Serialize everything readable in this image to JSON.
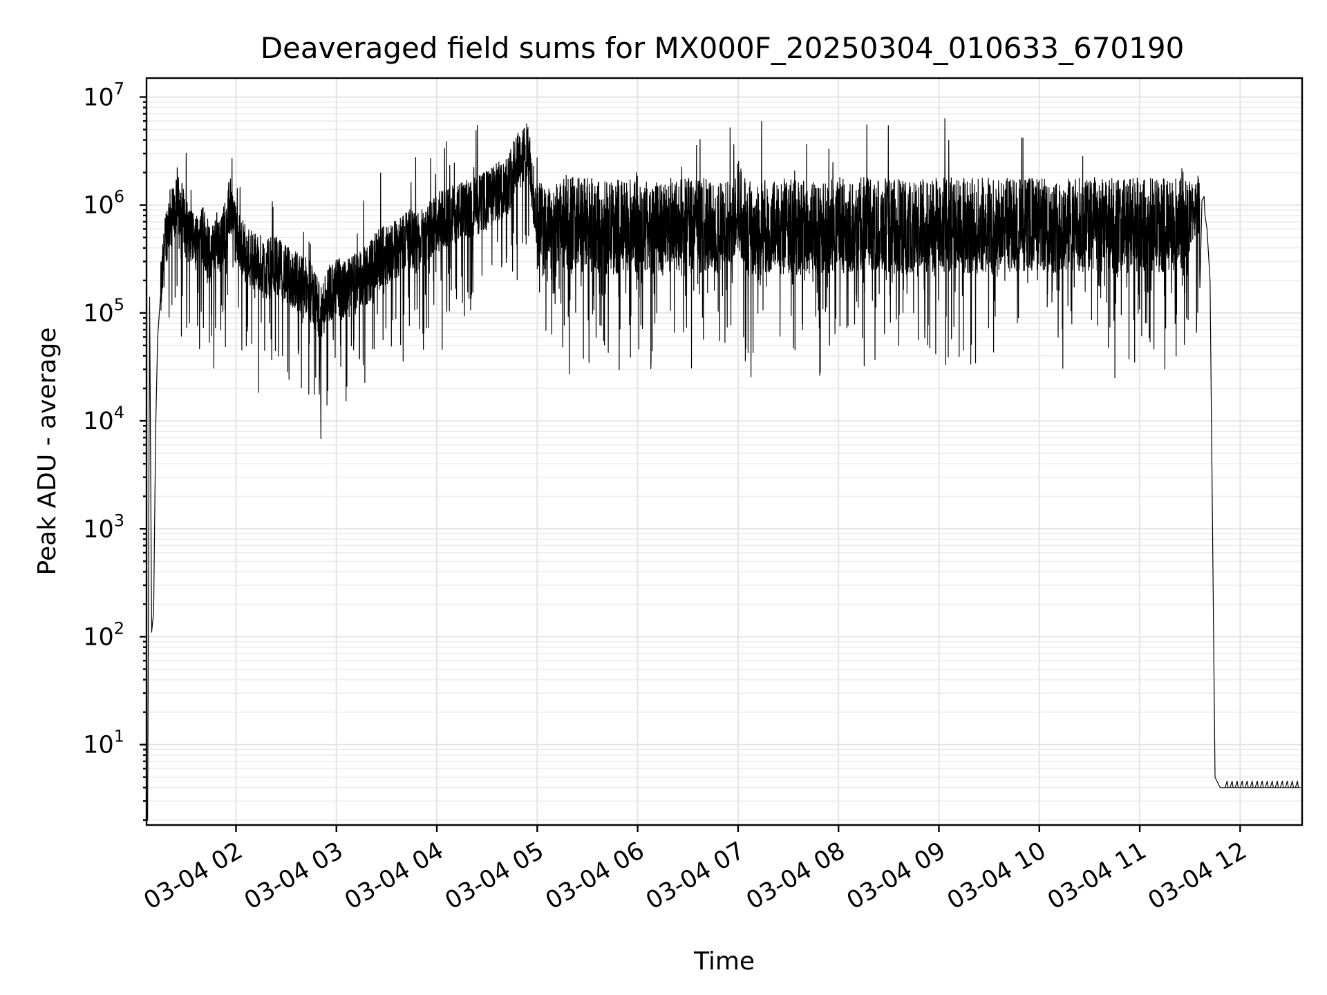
{
  "chart_data": {
    "type": "line",
    "title": "Deaveraged field sums for MX000F_20250304_010633_670190",
    "xlabel": "Time",
    "ylabel": "Peak ADU - average",
    "yscale": "log",
    "ylim": [
      1.8,
      15000000
    ],
    "xlim": [
      "2025-03-04 01:06:33",
      "2025-03-04 12:37:00"
    ],
    "grid": true,
    "x_ticks": [
      "03-04 02",
      "03-04 03",
      "03-04 04",
      "03-04 05",
      "03-04 06",
      "03-04 07",
      "03-04 08",
      "03-04 09",
      "03-04 10",
      "03-04 11",
      "03-04 12"
    ],
    "x_tick_hours": [
      2,
      3,
      4,
      5,
      6,
      7,
      8,
      9,
      10,
      11,
      12
    ],
    "y_ticks": [
      {
        "value": 10,
        "base": "10",
        "exp": "1"
      },
      {
        "value": 100,
        "base": "10",
        "exp": "2"
      },
      {
        "value": 1000,
        "base": "10",
        "exp": "3"
      },
      {
        "value": 10000,
        "base": "10",
        "exp": "4"
      },
      {
        "value": 100000,
        "base": "10",
        "exp": "5"
      },
      {
        "value": 1000000,
        "base": "10",
        "exp": "6"
      },
      {
        "value": 10000000,
        "base": "10",
        "exp": "7"
      }
    ],
    "series": [
      {
        "color": "#000000",
        "x_hours": [
          1.1,
          1.12,
          1.14,
          1.16,
          1.18,
          1.2,
          1.22,
          1.25,
          1.28,
          1.3,
          1.33,
          1.36,
          1.4,
          1.45,
          1.5,
          1.55,
          1.6,
          1.65,
          1.7,
          1.75,
          1.8,
          1.85,
          1.9,
          1.95,
          2.0,
          2.1,
          2.2,
          2.3,
          2.4,
          2.5,
          2.6,
          2.7,
          2.8,
          2.85,
          2.9,
          3.0,
          3.1,
          3.2,
          3.3,
          3.4,
          3.5,
          3.6,
          3.7,
          3.8,
          3.9,
          4.0,
          4.1,
          4.2,
          4.3,
          4.4,
          4.5,
          4.6,
          4.7,
          4.75,
          4.8,
          4.85,
          4.9,
          4.95,
          5.0,
          5.1,
          5.3,
          5.5,
          5.7,
          5.9,
          6.1,
          6.3,
          6.5,
          6.7,
          6.9,
          7.0,
          7.1,
          7.3,
          7.5,
          7.7,
          7.9,
          8.1,
          8.3,
          8.5,
          8.7,
          8.9,
          9.1,
          9.3,
          9.5,
          9.7,
          9.9,
          10.1,
          10.3,
          10.5,
          10.7,
          10.9,
          11.1,
          11.3,
          11.45,
          11.55,
          11.58,
          11.6,
          11.62,
          11.64,
          11.65,
          11.67,
          11.7,
          11.75,
          11.8,
          11.85,
          11.9,
          11.95,
          12.0,
          12.05,
          12.1,
          12.15,
          12.2,
          12.25,
          12.3,
          12.35,
          12.4,
          12.45,
          12.5,
          12.55,
          12.6
        ],
        "values": [
          2,
          2,
          140000,
          110,
          170,
          8000,
          60000,
          150000,
          300000,
          500000,
          700000,
          800000,
          900000,
          1000000,
          600000,
          500000,
          400000,
          600000,
          450000,
          300000,
          500000,
          400000,
          700000,
          1000000,
          500000,
          350000,
          300000,
          250000,
          280000,
          220000,
          200000,
          170000,
          130000,
          90000,
          150000,
          170000,
          160000,
          200000,
          220000,
          300000,
          350000,
          400000,
          500000,
          450000,
          550000,
          700000,
          750000,
          850000,
          900000,
          1000000,
          1100000,
          1300000,
          1500000,
          2000000,
          3000000,
          2500000,
          3500000,
          1500000,
          700000,
          500000,
          700000,
          650000,
          600000,
          650000,
          620000,
          600000,
          650000,
          640000,
          620000,
          1000000,
          600000,
          620000,
          640000,
          600000,
          630000,
          650000,
          660000,
          640000,
          620000,
          650000,
          660000,
          640000,
          650000,
          670000,
          660000,
          640000,
          650000,
          660000,
          640000,
          650000,
          650000,
          640000,
          700000,
          900000,
          1100000,
          900000,
          1100000,
          1200000,
          800000,
          600000,
          200000,
          5,
          4,
          4,
          4,
          4,
          4,
          4,
          4,
          4,
          4,
          4,
          4,
          4,
          4,
          4,
          4,
          4,
          4
        ]
      }
    ]
  }
}
